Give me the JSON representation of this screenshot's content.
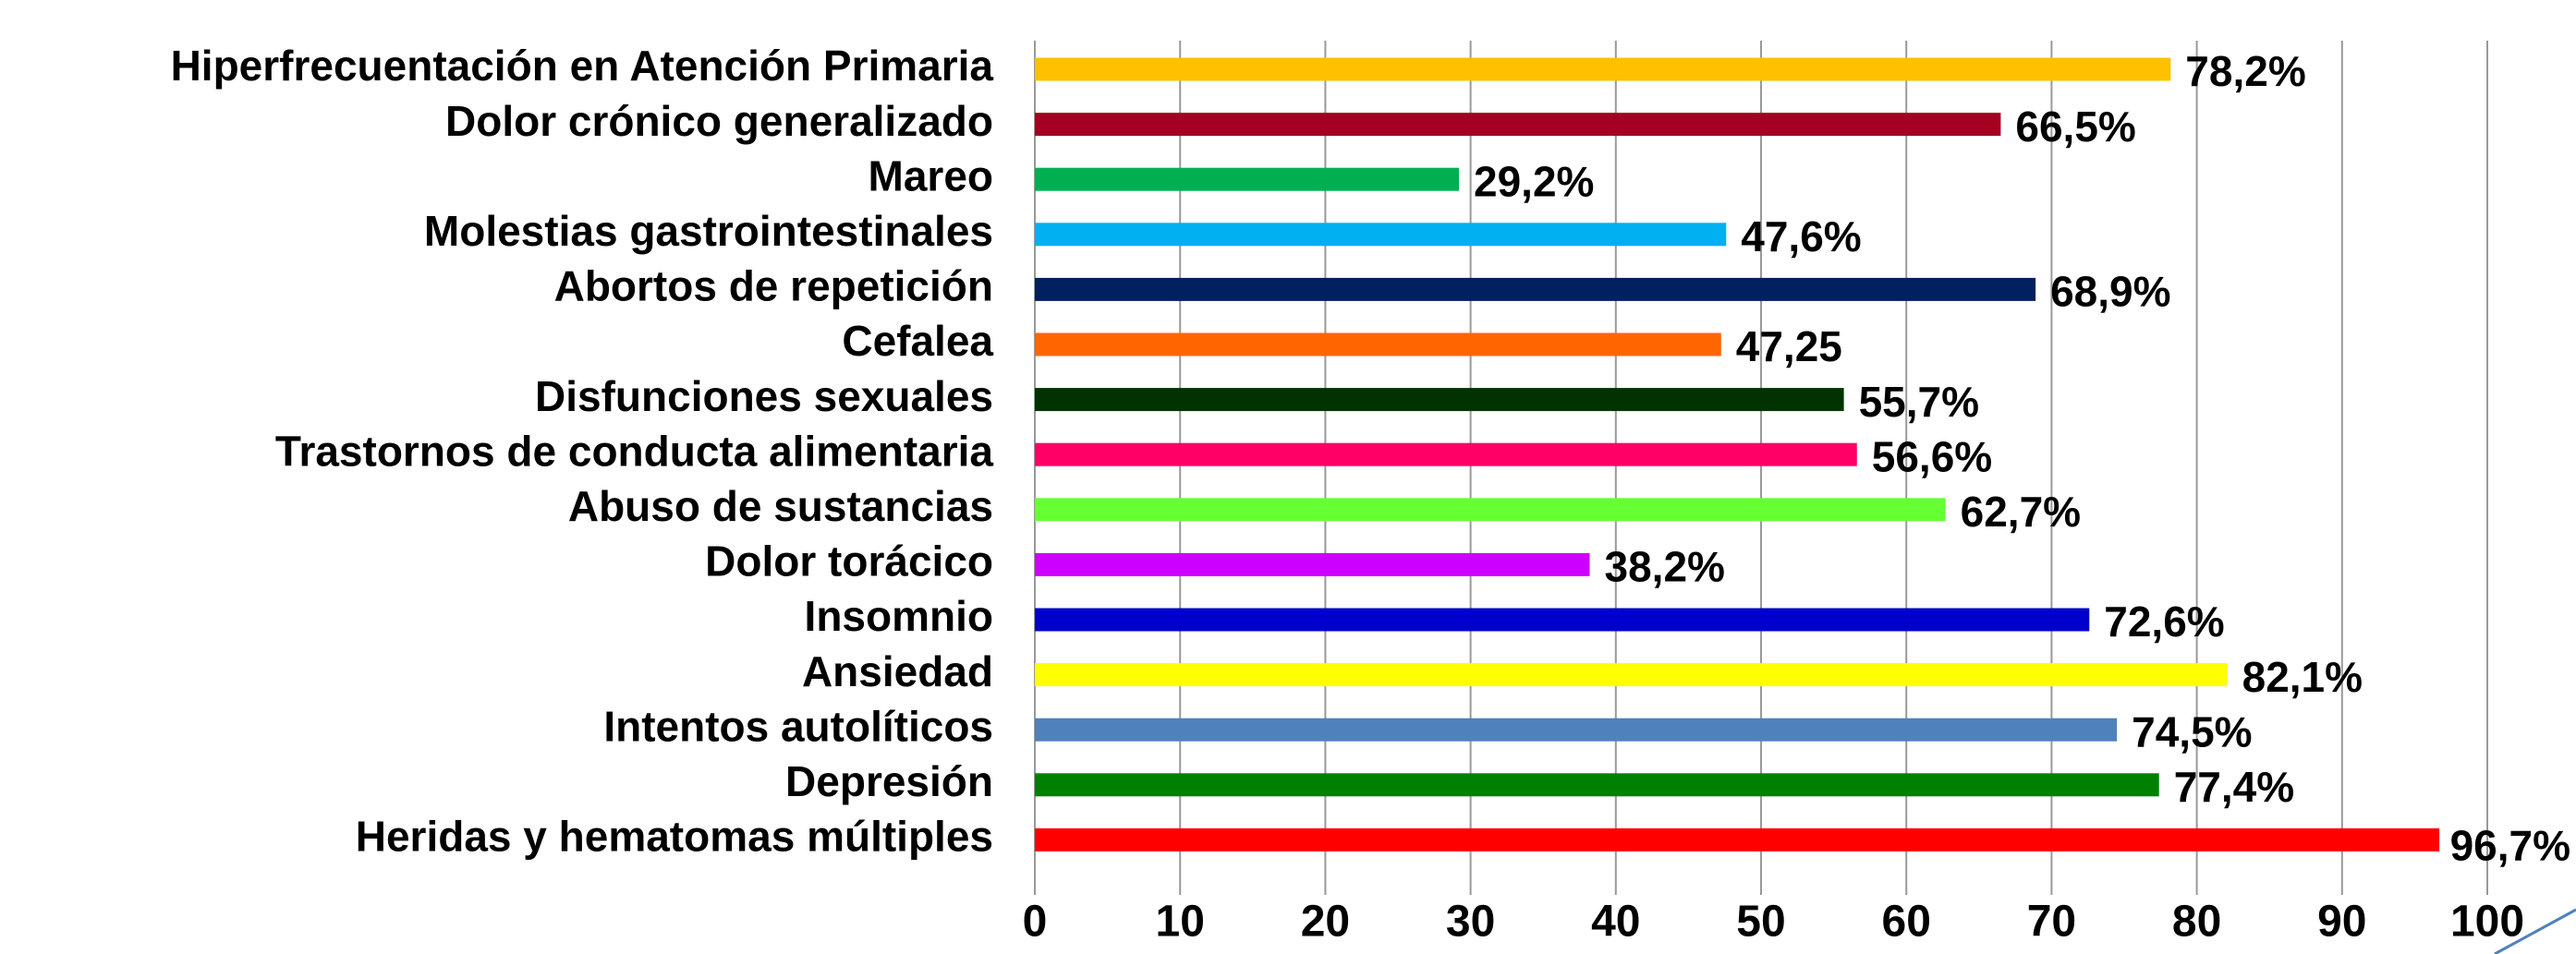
{
  "chart_data": {
    "type": "bar",
    "orientation": "horizontal",
    "categories": [
      "Hiperfrecuentación en Atención Primaria",
      "Dolor crónico generalizado",
      "Mareo",
      "Molestias gastrointestinales",
      "Abortos de repetición",
      "Cefalea",
      "Disfunciones sexuales",
      "Trastornos de conducta alimentaria",
      "Abuso de sustancias",
      "Dolor torácico",
      "Insomnio",
      "Ansiedad",
      "Intentos autolíticos",
      "Depresión",
      "Heridas y hematomas múltiples"
    ],
    "values": [
      78.2,
      66.5,
      29.2,
      47.6,
      68.9,
      47.25,
      55.7,
      56.6,
      62.7,
      38.2,
      72.6,
      82.1,
      74.5,
      77.4,
      96.7
    ],
    "value_labels": [
      "78,2%",
      "66,5%",
      "29,2%",
      "47,6%",
      "68,9%",
      "47,25",
      "55,7%",
      "56,6%",
      "62,7%",
      "38,2%",
      "72,6%",
      "82,1%",
      "74,5%",
      "77,4%",
      "96,7%"
    ],
    "colors": [
      "#FFC000",
      "#A50021",
      "#00B050",
      "#00B0F0",
      "#002060",
      "#FF6600",
      "#003300",
      "#FF0066",
      "#66FF33",
      "#CC00FF",
      "#0000CC",
      "#FFFF00",
      "#4F81BD",
      "#008000",
      "#FF0000"
    ],
    "xlim": [
      0,
      100
    ],
    "xticks": [
      0,
      10,
      20,
      30,
      40,
      50,
      60,
      70,
      80,
      90,
      100
    ],
    "grid": true
  }
}
